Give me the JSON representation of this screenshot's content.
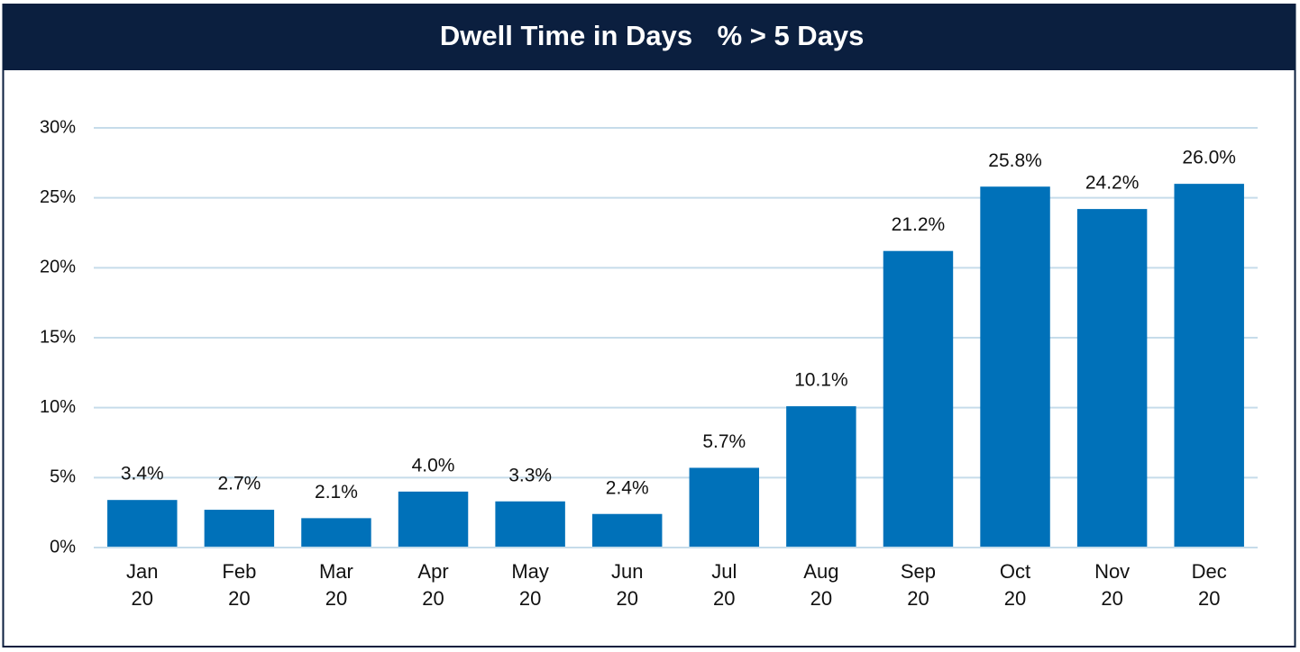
{
  "chart_data": {
    "type": "bar",
    "title": "Dwell Time in Days",
    "subtitle": "% > 5 Days",
    "categories": [
      "Jan 20",
      "Feb 20",
      "Mar 20",
      "Apr 20",
      "May 20",
      "Jun 20",
      "Jul 20",
      "Aug 20",
      "Sep 20",
      "Oct 20",
      "Nov 20",
      "Dec 20"
    ],
    "values": [
      3.4,
      2.7,
      2.1,
      4.0,
      3.3,
      2.4,
      5.7,
      10.1,
      21.2,
      25.8,
      24.2,
      26.0
    ],
    "value_labels": [
      "3.4%",
      "2.7%",
      "2.1%",
      "4.0%",
      "3.3%",
      "2.4%",
      "5.7%",
      "10.1%",
      "21.2%",
      "25.8%",
      "24.2%",
      "26.0%"
    ],
    "color": "#0071b9",
    "ylim": [
      0,
      30
    ],
    "yticks": [
      {
        "value": 0,
        "label": "0%"
      },
      {
        "value": 5,
        "label": "5%"
      },
      {
        "value": 10,
        "label": "10%"
      },
      {
        "value": 15,
        "label": "15%"
      },
      {
        "value": 20,
        "label": "20%"
      },
      {
        "value": 25,
        "label": "25%"
      },
      {
        "value": 30,
        "label": "30%"
      }
    ],
    "grid": true
  }
}
